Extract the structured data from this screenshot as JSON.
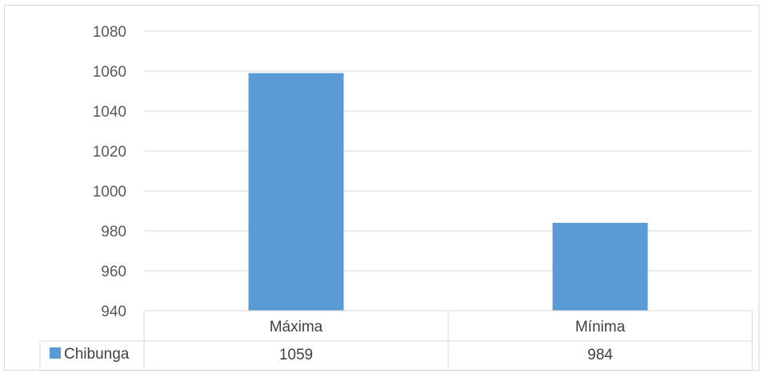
{
  "chart_data": {
    "type": "bar",
    "title": "",
    "xlabel": "",
    "ylabel": "",
    "categories": [
      "Máxima",
      "Mínima"
    ],
    "series": [
      {
        "name": "Chibunga",
        "values": [
          1059,
          984
        ],
        "color": "#5b9bd5"
      }
    ],
    "ylim": [
      940,
      1080
    ],
    "yticks": [
      940,
      960,
      980,
      1000,
      1020,
      1040,
      1060,
      1080
    ],
    "grid": true,
    "legend": "data-table-left",
    "data_table": true,
    "value_labels": [
      "1059",
      "984"
    ]
  }
}
